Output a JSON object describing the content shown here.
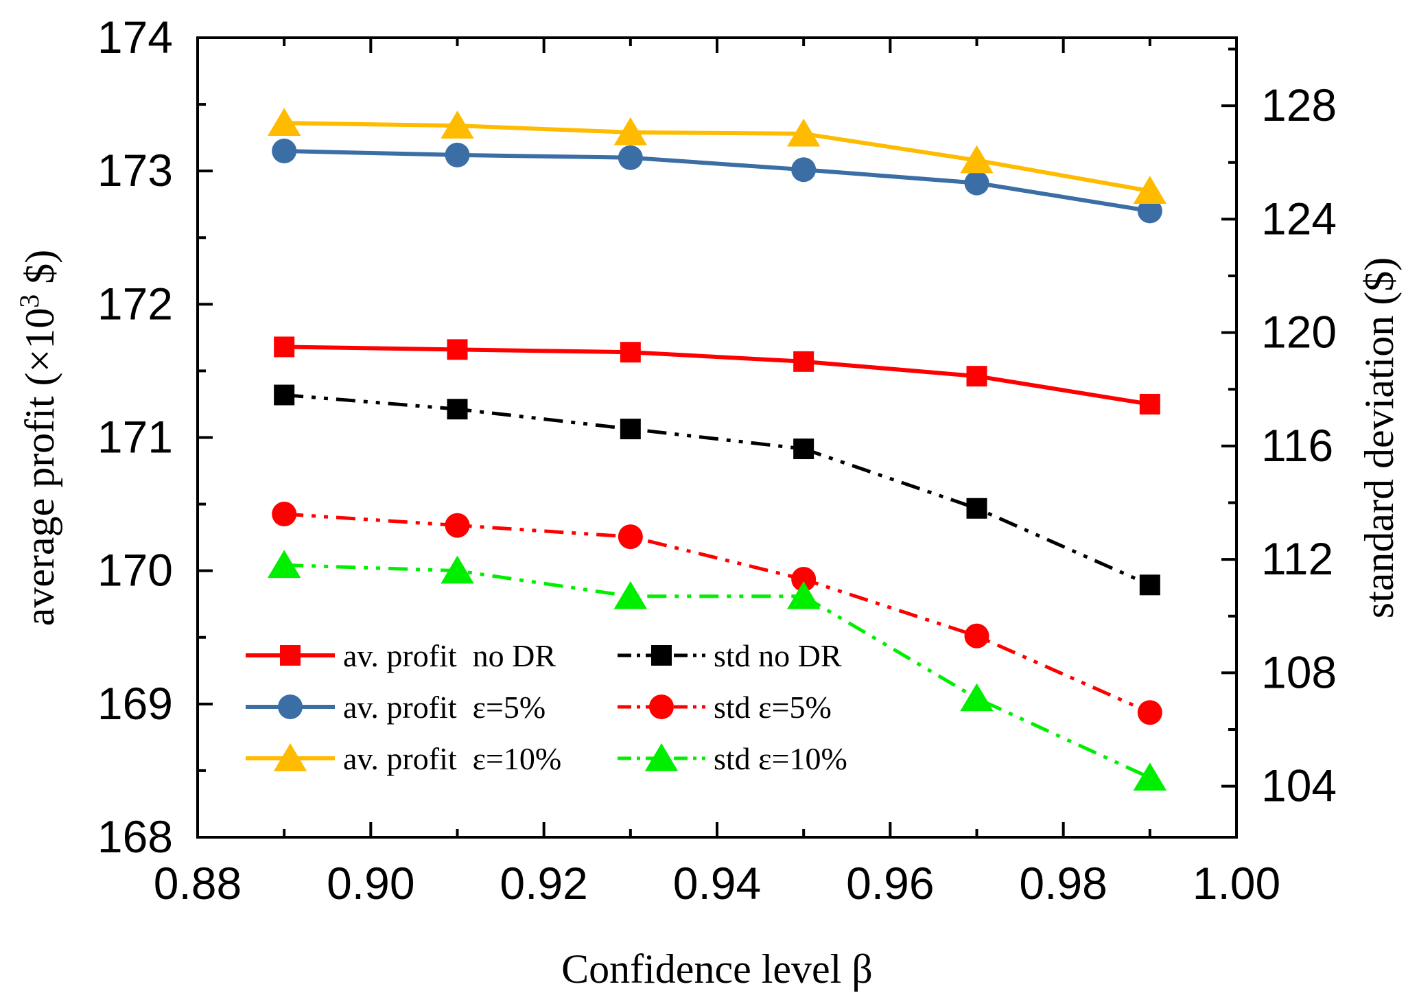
{
  "chart_data": {
    "type": "line",
    "xlabel": "Confidence level β",
    "ylabel_left": "average profit (×10³ $)",
    "ylabel_left_main": "average profit (×10",
    "ylabel_left_sup": "3",
    "ylabel_left_tail": " $)",
    "ylabel_right": "standard deviation ($)",
    "xlim": [
      0.88,
      1.0
    ],
    "ylim_left": [
      168,
      174
    ],
    "ylim_right": [
      102.2,
      130.4
    ],
    "x_ticks": [
      "0.88",
      "0.90",
      "0.92",
      "0.94",
      "0.96",
      "0.98",
      "1.00"
    ],
    "y_left_ticks": [
      "168",
      "169",
      "170",
      "171",
      "172",
      "173",
      "174"
    ],
    "y_right_ticks": [
      "104",
      "108",
      "112",
      "116",
      "120",
      "124",
      "128"
    ],
    "x": [
      0.89,
      0.91,
      0.93,
      0.95,
      0.97,
      0.99
    ],
    "series": [
      {
        "name": "av. profit  no DR",
        "axis": "left",
        "style": "solid",
        "marker": "square",
        "color": "#ff0000",
        "values": [
          171.68,
          171.66,
          171.64,
          171.57,
          171.46,
          171.25
        ]
      },
      {
        "name": "av. profit  ε=5%",
        "axis": "left",
        "style": "solid",
        "marker": "circle",
        "color": "#3a6ea5",
        "values": [
          173.15,
          173.12,
          173.1,
          173.01,
          172.91,
          172.7
        ]
      },
      {
        "name": "av. profit  ε=10%",
        "axis": "left",
        "style": "solid",
        "marker": "triangle",
        "color": "#ffbb00",
        "values": [
          173.36,
          173.34,
          173.29,
          173.28,
          173.08,
          172.85
        ]
      },
      {
        "name": "std no DR",
        "axis": "right",
        "style": "dashdotdot",
        "marker": "square",
        "color": "#000000",
        "values": [
          117.8,
          117.3,
          116.6,
          115.9,
          113.8,
          111.1
        ]
      },
      {
        "name": "std ε=5%",
        "axis": "right",
        "style": "dashdotdot",
        "marker": "circle",
        "color": "#ff0000",
        "values": [
          113.6,
          113.2,
          112.8,
          111.3,
          109.3,
          106.6
        ]
      },
      {
        "name": "std ε=10%",
        "axis": "right",
        "style": "dashdotdot",
        "marker": "triangle",
        "color": "#00ee00",
        "values": [
          111.8,
          111.6,
          110.7,
          110.7,
          107.1,
          104.3
        ]
      }
    ],
    "legend_position": "bottom-left"
  }
}
